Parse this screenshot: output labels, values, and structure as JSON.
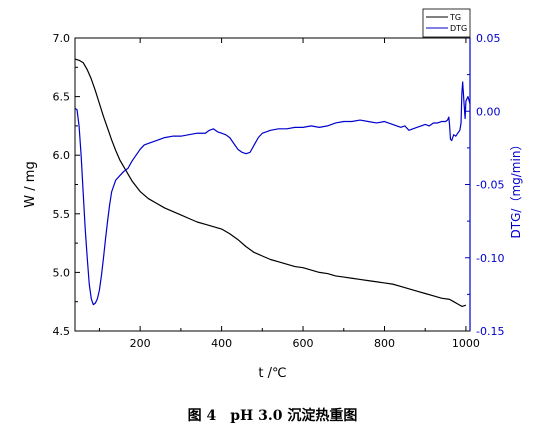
{
  "caption": "图 4　pH 3.0 沉淀热重图",
  "chart_data": {
    "type": "line",
    "xlabel": "t /℃",
    "ylabel_left": "W / mg",
    "ylabel_right": "DTG/（mg/min）",
    "xlim": [
      40,
      1010
    ],
    "ylim_left": [
      4.5,
      7.0
    ],
    "ylim_right": [
      -0.15,
      0.05
    ],
    "xticks": [
      "200",
      "400",
      "600",
      "800",
      "1000"
    ],
    "xtick_values": [
      200,
      400,
      600,
      800,
      1000
    ],
    "yticks_left": [
      "4.5",
      "5.0",
      "5.5",
      "6.0",
      "6.5",
      "7.0"
    ],
    "ytick_values_left": [
      4.5,
      5.0,
      5.5,
      6.0,
      6.5,
      7.0
    ],
    "yticks_right": [
      "-0.15",
      "-0.10",
      "-0.05",
      "0.00",
      "0.05"
    ],
    "ytick_values_right": [
      -0.15,
      -0.1,
      -0.05,
      0.0,
      0.05
    ],
    "legend": {
      "placement": "top-right",
      "entries": [
        "TG",
        "DTG"
      ]
    },
    "series": [
      {
        "name": "TG",
        "axis": "left",
        "color": "#000000",
        "x": [
          40,
          50,
          60,
          70,
          80,
          90,
          100,
          110,
          120,
          130,
          140,
          150,
          160,
          170,
          180,
          200,
          220,
          240,
          260,
          280,
          300,
          320,
          340,
          360,
          380,
          400,
          420,
          440,
          460,
          480,
          500,
          520,
          540,
          560,
          580,
          600,
          620,
          640,
          660,
          680,
          700,
          720,
          740,
          760,
          780,
          800,
          820,
          840,
          860,
          880,
          900,
          920,
          940,
          960,
          970,
          980,
          990,
          1000
        ],
        "values": [
          6.82,
          6.81,
          6.79,
          6.73,
          6.65,
          6.55,
          6.44,
          6.33,
          6.23,
          6.13,
          6.04,
          5.96,
          5.9,
          5.84,
          5.78,
          5.69,
          5.63,
          5.59,
          5.55,
          5.52,
          5.49,
          5.46,
          5.43,
          5.41,
          5.39,
          5.37,
          5.33,
          5.28,
          5.22,
          5.17,
          5.14,
          5.11,
          5.09,
          5.07,
          5.05,
          5.04,
          5.02,
          5.0,
          4.99,
          4.97,
          4.96,
          4.95,
          4.94,
          4.93,
          4.92,
          4.91,
          4.9,
          4.88,
          4.86,
          4.84,
          4.82,
          4.8,
          4.78,
          4.77,
          4.75,
          4.73,
          4.71,
          4.72
        ]
      },
      {
        "name": "DTG",
        "axis": "right",
        "color": "#0000cc",
        "x": [
          40,
          45,
          50,
          55,
          60,
          65,
          70,
          75,
          80,
          85,
          90,
          95,
          100,
          105,
          110,
          115,
          120,
          125,
          130,
          140,
          150,
          160,
          170,
          180,
          190,
          200,
          210,
          220,
          240,
          260,
          280,
          300,
          320,
          340,
          360,
          370,
          380,
          390,
          400,
          410,
          420,
          430,
          440,
          450,
          460,
          470,
          480,
          490,
          500,
          510,
          520,
          540,
          560,
          580,
          600,
          620,
          640,
          660,
          680,
          700,
          720,
          740,
          760,
          780,
          800,
          820,
          840,
          850,
          860,
          870,
          880,
          890,
          900,
          910,
          920,
          930,
          940,
          950,
          955,
          958,
          960,
          962,
          965,
          970,
          975,
          980,
          985,
          988,
          990,
          992,
          995,
          998,
          1000,
          1005,
          1010
        ],
        "values": [
          0.002,
          0.001,
          -0.01,
          -0.03,
          -0.055,
          -0.08,
          -0.1,
          -0.118,
          -0.128,
          -0.132,
          -0.131,
          -0.128,
          -0.122,
          -0.112,
          -0.1,
          -0.087,
          -0.075,
          -0.064,
          -0.055,
          -0.047,
          -0.044,
          -0.041,
          -0.039,
          -0.034,
          -0.03,
          -0.026,
          -0.023,
          -0.022,
          -0.02,
          -0.018,
          -0.017,
          -0.017,
          -0.016,
          -0.015,
          -0.015,
          -0.013,
          -0.012,
          -0.014,
          -0.015,
          -0.016,
          -0.018,
          -0.022,
          -0.026,
          -0.028,
          -0.029,
          -0.028,
          -0.023,
          -0.018,
          -0.015,
          -0.014,
          -0.013,
          -0.012,
          -0.012,
          -0.011,
          -0.011,
          -0.01,
          -0.011,
          -0.01,
          -0.008,
          -0.007,
          -0.007,
          -0.006,
          -0.007,
          -0.008,
          -0.007,
          -0.009,
          -0.011,
          -0.01,
          -0.013,
          -0.012,
          -0.011,
          -0.01,
          -0.009,
          -0.01,
          -0.008,
          -0.008,
          -0.007,
          -0.007,
          -0.006,
          -0.004,
          -0.01,
          -0.019,
          -0.02,
          -0.016,
          -0.017,
          -0.015,
          -0.013,
          -0.008,
          0.012,
          0.02,
          0.007,
          -0.005,
          0.007,
          0.01,
          0.005
        ]
      }
    ]
  }
}
